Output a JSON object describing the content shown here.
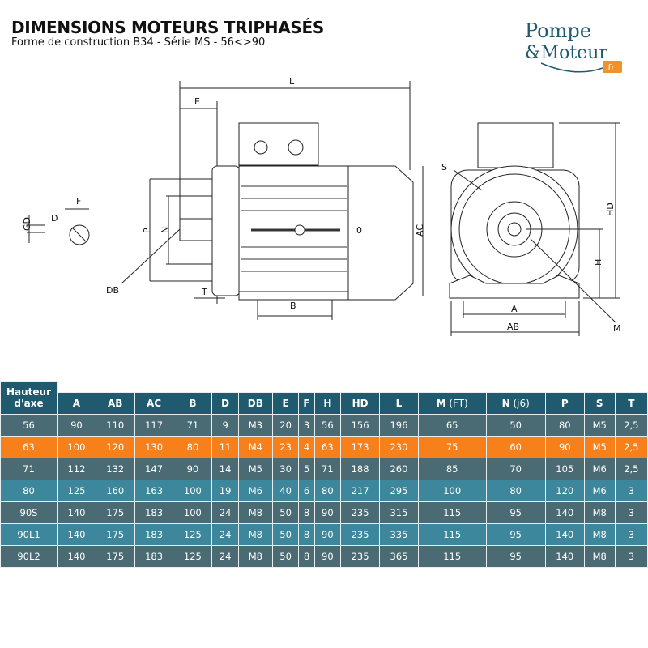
{
  "header": {
    "title": "DIMENSIONS MOTEURS TRIPHASÉS",
    "subtitle": "Forme de construction B34 - Série MS - 56<>90"
  },
  "logo": {
    "line1": "Pompe",
    "line2": "&Moteur",
    "tld": ".fr",
    "color": "#1f5a6e",
    "accent": "#f0912a"
  },
  "diagram": {
    "labels": {
      "L": "L",
      "E": "E",
      "F": "F",
      "D": "D",
      "GD": "GD",
      "P": "P",
      "N": "N",
      "DB": "DB",
      "T": "T",
      "B": "B",
      "AC": "AC",
      "zero": "0",
      "S": "S",
      "HD": "HD",
      "H": "H",
      "A": "A",
      "AB": "AB",
      "M": "M"
    }
  },
  "table": {
    "colors": {
      "header": "#1f5a6e",
      "row_dark": "#4a6a74",
      "row_teal": "#3d879c",
      "highlight": "#f7801a"
    },
    "corner": [
      "Hauteur",
      "d'axe"
    ],
    "columns": [
      {
        "b": "A"
      },
      {
        "b": "AB"
      },
      {
        "b": "AC"
      },
      {
        "b": "B"
      },
      {
        "b": "D"
      },
      {
        "b": "DB"
      },
      {
        "b": "E"
      },
      {
        "b": "F"
      },
      {
        "b": "H"
      },
      {
        "b": "HD"
      },
      {
        "b": "L"
      },
      {
        "b": "M",
        "l": " (FT)"
      },
      {
        "b": "N",
        "l": " (j6)"
      },
      {
        "b": "P"
      },
      {
        "b": "S"
      },
      {
        "b": "T"
      }
    ],
    "rows": [
      {
        "style": "slate",
        "cells": [
          "56",
          "90",
          "110",
          "117",
          "71",
          "9",
          "M3",
          "20",
          "3",
          "56",
          "156",
          "196",
          "65",
          "50",
          "80",
          "M5",
          "2,5"
        ]
      },
      {
        "style": "hl",
        "cells": [
          "63",
          "100",
          "120",
          "130",
          "80",
          "11",
          "M4",
          "23",
          "4",
          "63",
          "173",
          "230",
          "75",
          "60",
          "90",
          "M5",
          "2,5"
        ]
      },
      {
        "style": "slate",
        "cells": [
          "71",
          "112",
          "132",
          "147",
          "90",
          "14",
          "M5",
          "30",
          "5",
          "71",
          "188",
          "260",
          "85",
          "70",
          "105",
          "M6",
          "2,5"
        ]
      },
      {
        "style": "teal",
        "cells": [
          "80",
          "125",
          "160",
          "163",
          "100",
          "19",
          "M6",
          "40",
          "6",
          "80",
          "217",
          "295",
          "100",
          "80",
          "120",
          "M6",
          "3"
        ]
      },
      {
        "style": "slate",
        "cells": [
          "90S",
          "140",
          "175",
          "183",
          "100",
          "24",
          "M8",
          "50",
          "8",
          "90",
          "235",
          "315",
          "115",
          "95",
          "140",
          "M8",
          "3"
        ]
      },
      {
        "style": "teal",
        "cells": [
          "90L1",
          "140",
          "175",
          "183",
          "125",
          "24",
          "M8",
          "50",
          "8",
          "90",
          "235",
          "335",
          "115",
          "95",
          "140",
          "M8",
          "3"
        ]
      },
      {
        "style": "slate",
        "cells": [
          "90L2",
          "140",
          "175",
          "183",
          "125",
          "24",
          "M8",
          "50",
          "8",
          "90",
          "235",
          "365",
          "115",
          "95",
          "140",
          "M8",
          "3"
        ]
      }
    ]
  }
}
